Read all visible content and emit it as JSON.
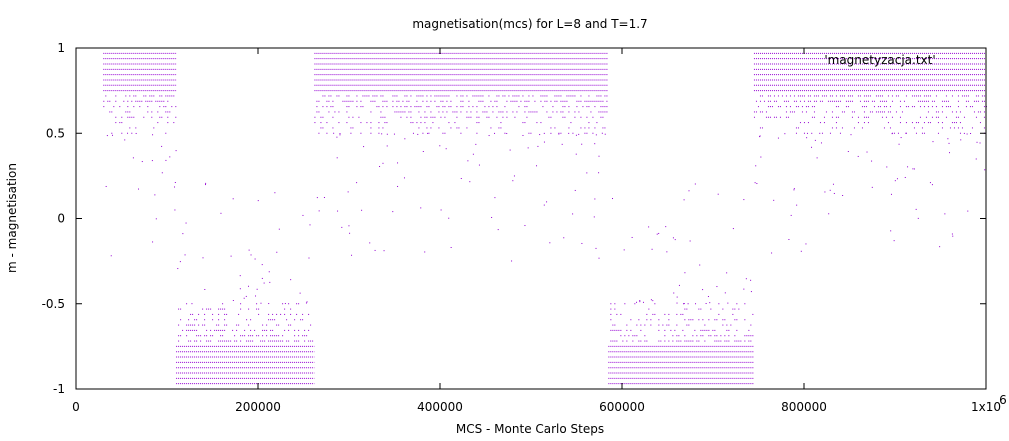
{
  "chart_data": {
    "type": "scatter",
    "title": "magnetisation(mcs) for L=8 and T=1.7",
    "xlabel": "MCS - Monte Carlo Steps",
    "ylabel": "m - magnetisation",
    "xlim": [
      0,
      1000000
    ],
    "ylim": [
      -1,
      1
    ],
    "x_ticks": [
      "0",
      "200000",
      "400000",
      "600000",
      "800000",
      "1x10"
    ],
    "x_tick_exponent": "6",
    "y_ticks": [
      "1",
      "0.5",
      "0",
      "-0.5",
      "-1"
    ],
    "grid": false,
    "legend_position": "top-right",
    "colors": {
      "series": "#9400d3",
      "frame": "#000000"
    },
    "series": [
      {
        "name": "'magnetyzacja.txt'",
        "segments": [
          {
            "x_start": 30000,
            "x_end": 110000,
            "state": 1
          },
          {
            "x_start": 110000,
            "x_end": 262000,
            "state": -1
          },
          {
            "x_start": 262000,
            "x_end": 585000,
            "state": 1
          },
          {
            "x_start": 585000,
            "x_end": 745000,
            "state": -1
          },
          {
            "x_start": 745000,
            "x_end": 1000000,
            "state": 1
          }
        ],
        "dense_levels": [
          1,
          0.96875,
          0.9375,
          0.90625,
          0.875,
          0.84375,
          0.8125,
          0.78125,
          0.75
        ],
        "sparse_levels": [
          0.71875,
          0.6875,
          0.65625,
          0.625,
          0.59375,
          0.5625,
          0.53125,
          0.5
        ]
      }
    ]
  }
}
